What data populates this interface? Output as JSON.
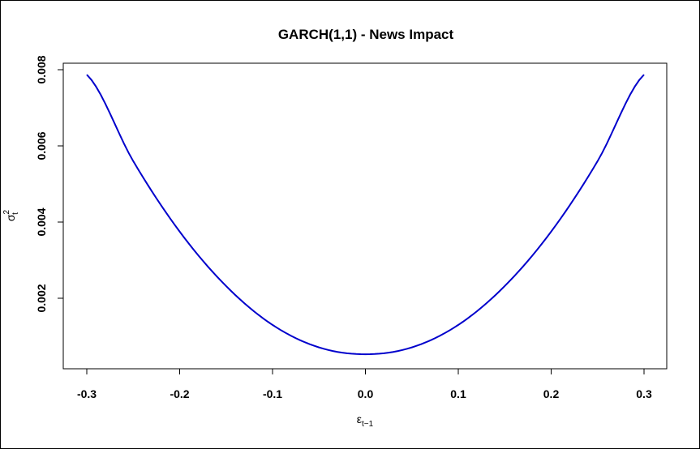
{
  "chart_data": {
    "type": "line",
    "title": "GARCH(1,1) - News Impact",
    "xlabel": "ε",
    "xlabel_subscript": "t−1",
    "ylabel": "σ",
    "ylabel_superscript": "2",
    "ylabel_subscript": "t",
    "xlim": [
      -0.3,
      0.3
    ],
    "ylim": [
      0.00045,
      0.0079
    ],
    "x_ticks": [
      -0.3,
      -0.2,
      -0.1,
      0.0,
      0.1,
      0.2,
      0.3
    ],
    "x_tick_labels": [
      "-0.3",
      "-0.2",
      "-0.1",
      "0.0",
      "0.1",
      "0.2",
      "0.3"
    ],
    "y_ticks": [
      0.002,
      0.004,
      0.006,
      0.008
    ],
    "y_tick_labels": [
      "0.002",
      "0.004",
      "0.006",
      "0.008"
    ],
    "grid": false,
    "series": [
      {
        "color": "#0000cc",
        "x": [
          -0.3,
          -0.25,
          -0.2,
          -0.15,
          -0.1,
          -0.05,
          0.0,
          0.05,
          0.1,
          0.15,
          0.2,
          0.25,
          0.3
        ],
        "y": [
          0.00787,
          0.0056,
          0.00375,
          0.00232,
          0.0013,
          0.00071,
          0.00053,
          0.00071,
          0.0013,
          0.00232,
          0.00375,
          0.0056,
          0.00787
        ]
      }
    ]
  }
}
